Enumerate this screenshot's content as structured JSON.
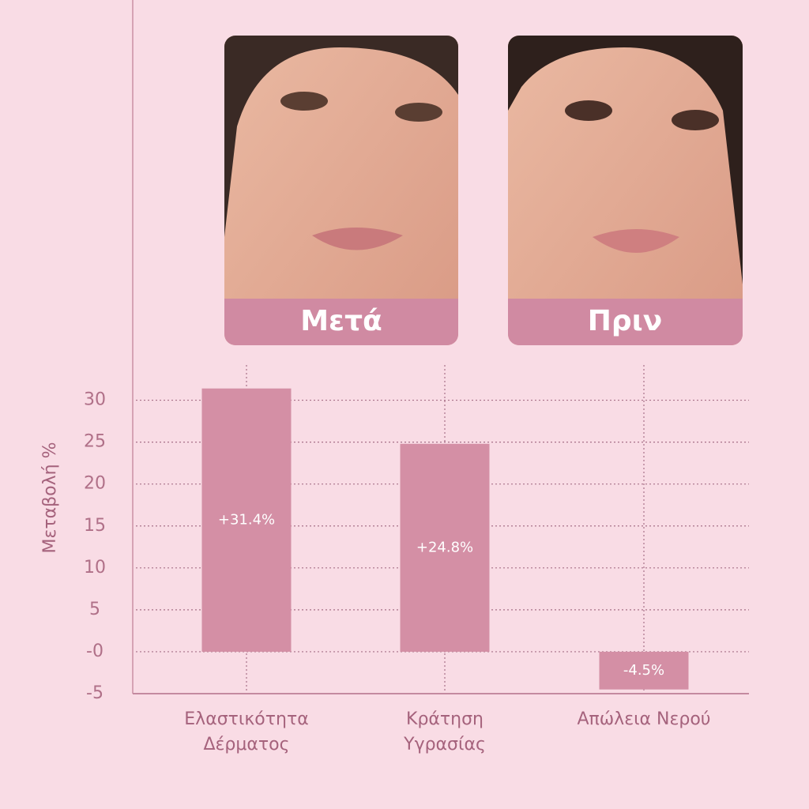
{
  "panels": [
    {
      "label": "Μετά"
    },
    {
      "label": "Πριν"
    }
  ],
  "chart_data": {
    "type": "bar",
    "y_label": "Μεταβολή %",
    "categories": [
      "Ελαστικότητα Δέρματος",
      "Κράτηση Υγρασίας",
      "Απώλεια Νερού"
    ],
    "values": [
      31.4,
      24.8,
      -4.5
    ],
    "value_labels": [
      "+31.4%",
      "+24.8%",
      "-4.5%"
    ],
    "color": "#d48fa5",
    "ylim": [
      -5,
      34.2
    ],
    "yticks": [
      -5,
      {
        "value": 0,
        "label": "-0"
      },
      5,
      10,
      15,
      20,
      25,
      30
    ],
    "grid": true
  }
}
